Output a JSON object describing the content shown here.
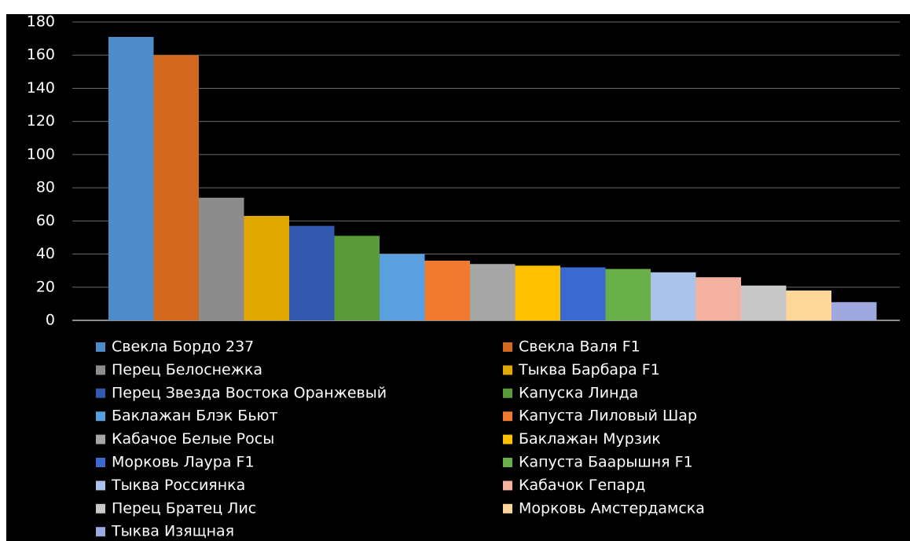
{
  "chart_data": {
    "type": "bar",
    "ylim": [
      0,
      180
    ],
    "yticks": [
      0,
      20,
      40,
      60,
      80,
      100,
      120,
      140,
      160,
      180
    ],
    "grid": true,
    "legend": "bottom",
    "series": [
      {
        "name": "Свекла Бордо 237",
        "color": "#4f8bc9",
        "values": [
          171
        ]
      },
      {
        "name": "Свекла Валя F1",
        "color": "#d2691e",
        "values": [
          160
        ]
      },
      {
        "name": "Перец Белоснежка",
        "color": "#8c8c8c",
        "values": [
          74
        ]
      },
      {
        "name": "Тыква Барбара F1",
        "color": "#e0a800",
        "values": [
          63
        ]
      },
      {
        "name": "Перец Звезда Востока Оранжевый",
        "color": "#3358b0",
        "values": [
          57
        ]
      },
      {
        "name": "Капуска Линда",
        "color": "#5a9a3a",
        "values": [
          51
        ]
      },
      {
        "name": "Баклажан Блэк Бьют",
        "color": "#5aa0e0",
        "values": [
          40
        ]
      },
      {
        "name": "Капуста Лиловый Шар",
        "color": "#f07a30",
        "values": [
          36
        ]
      },
      {
        "name": "Кабачое Белые Росы",
        "color": "#a6a6a6",
        "values": [
          34
        ]
      },
      {
        "name": "Баклажан Мурзик",
        "color": "#ffc000",
        "values": [
          33
        ]
      },
      {
        "name": "Морковь Лаура F1",
        "color": "#3a6ad0",
        "values": [
          32
        ]
      },
      {
        "name": "Капуста Баарышня F1",
        "color": "#6ab04a",
        "values": [
          31
        ]
      },
      {
        "name": "Тыква Россиянка",
        "color": "#a9c4e8",
        "values": [
          29
        ]
      },
      {
        "name": "Кабачок Гепард",
        "color": "#f4b1a0",
        "values": [
          26
        ]
      },
      {
        "name": "Перец Братец Лис",
        "color": "#c8c8c8",
        "values": [
          21
        ]
      },
      {
        "name": "Морковь Амстердамска",
        "color": "#fdd79a",
        "values": [
          18
        ]
      },
      {
        "name": "Тыква Изящная",
        "color": "#a0a8e0",
        "values": [
          11
        ]
      }
    ]
  }
}
